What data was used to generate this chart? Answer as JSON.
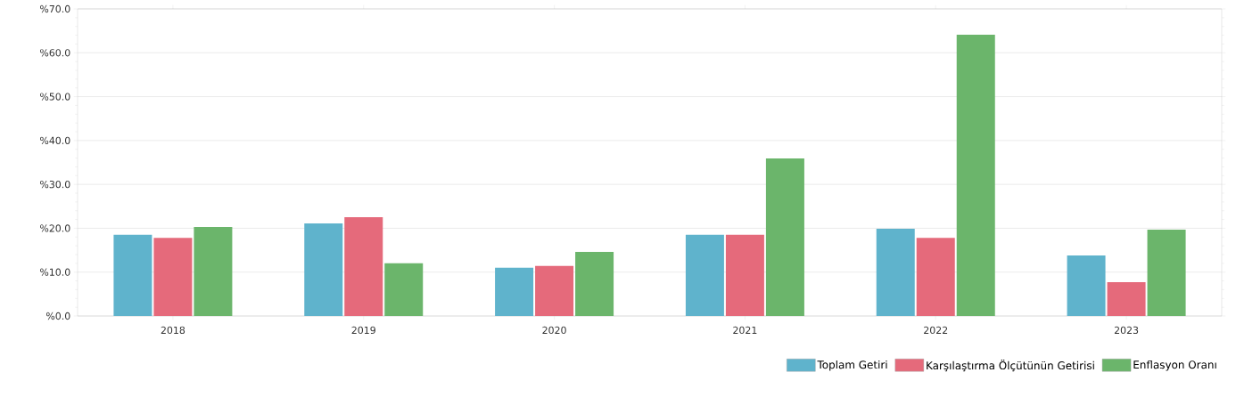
{
  "chart_data": {
    "type": "bar",
    "categories": [
      "2018",
      "2019",
      "2020",
      "2021",
      "2022",
      "2023"
    ],
    "series": [
      {
        "name": "Toplam Getiri",
        "color": "#5fb3cc",
        "values": [
          18.5,
          21.1,
          11.0,
          18.5,
          19.9,
          13.8
        ]
      },
      {
        "name": "Karşılaştırma Ölçütünün Getirisi",
        "color": "#e56a7b",
        "values": [
          17.8,
          22.5,
          11.4,
          18.5,
          17.8,
          7.7
        ]
      },
      {
        "name": "Enflasyon Oranı",
        "color": "#6bb56b",
        "values": [
          20.3,
          12.0,
          14.6,
          35.9,
          64.1,
          19.7
        ]
      }
    ],
    "ylim": [
      0,
      70
    ],
    "yticks": [
      {
        "value": 0,
        "label": "%0.0"
      },
      {
        "value": 10,
        "label": "%10.0"
      },
      {
        "value": 20,
        "label": "%20.0"
      },
      {
        "value": 30,
        "label": "%30.0"
      },
      {
        "value": 40,
        "label": "%40.0"
      },
      {
        "value": 50,
        "label": "%50.0"
      },
      {
        "value": 60,
        "label": "%60.0"
      },
      {
        "value": 70,
        "label": "%70.0"
      }
    ],
    "grid": "y",
    "legend": "bottom right"
  }
}
